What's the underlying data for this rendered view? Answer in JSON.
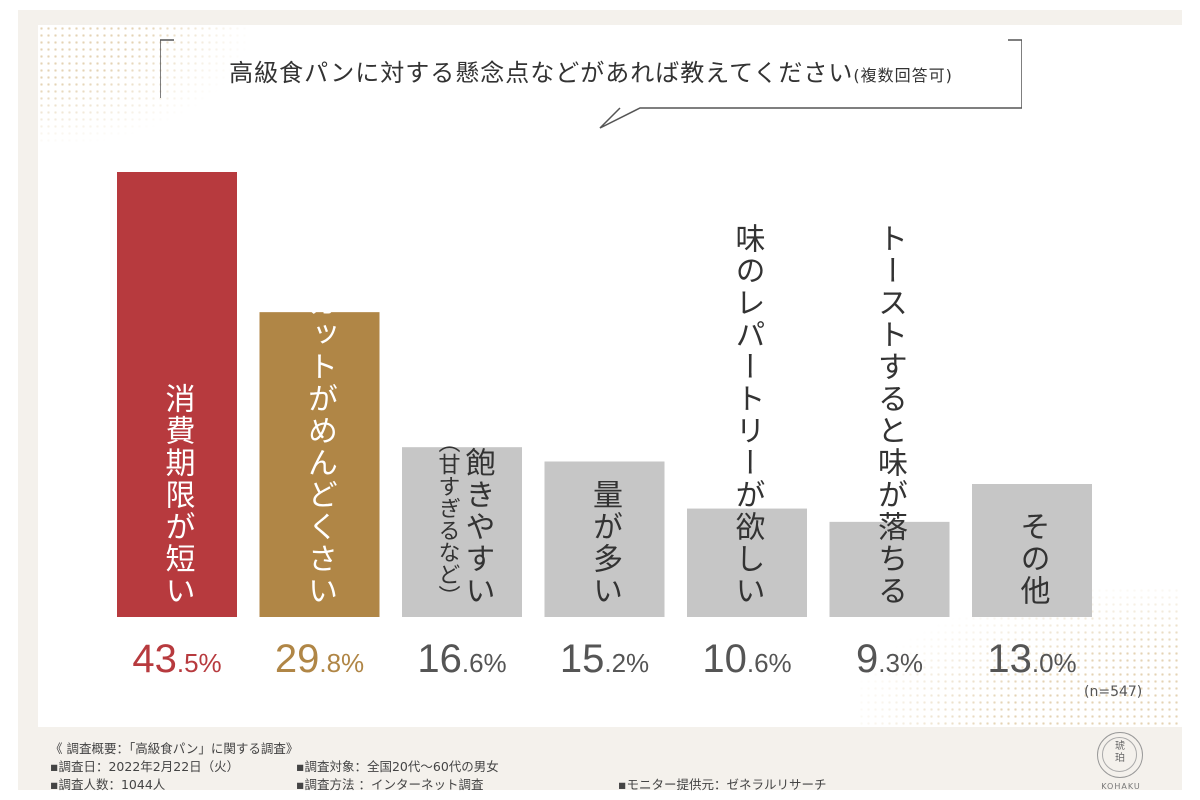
{
  "chart_data": {
    "type": "bar",
    "title": "高級食パンに対する懸念点などがあれば教えてください",
    "title_note": "(複数回答可)",
    "categories": [
      "消費期限が短い",
      "カットがめんどくさい",
      "飽きやすい（甘すぎるなど）",
      "量が多い",
      "味のレパートリーが欲しい",
      "トーストすると味が落ちる",
      "その他"
    ],
    "category_lines": [
      [
        "消費期限が短い"
      ],
      [
        "カットがめんどくさい"
      ],
      [
        "飽きやすい",
        "（甘すぎるなど）"
      ],
      [
        "量が多い"
      ],
      [
        "味のレパートリーが欲しい"
      ],
      [
        "トーストすると味が落ちる"
      ],
      [
        "その他"
      ]
    ],
    "values": [
      43.5,
      29.8,
      16.6,
      15.2,
      10.6,
      9.3,
      13.0
    ],
    "value_labels": [
      {
        "int": "43",
        "dec": ".5%"
      },
      {
        "int": "29",
        "dec": ".8%"
      },
      {
        "int": "16",
        "dec": ".6%"
      },
      {
        "int": "15",
        "dec": ".2%"
      },
      {
        "int": "10",
        "dec": ".6%"
      },
      {
        "int": "9",
        "dec": ".3%"
      },
      {
        "int": "13",
        "dec": ".0%"
      }
    ],
    "colors": [
      "#b73a3e",
      "#b08646",
      "#c6c6c6",
      "#c6c6c6",
      "#c6c6c6",
      "#c6c6c6",
      "#c6c6c6"
    ],
    "label_colors": [
      "#b73a3e",
      "#b08646",
      "#555555",
      "#555555",
      "#555555",
      "#555555",
      "#555555"
    ],
    "category_text_colors": [
      "#ffffff",
      "#ffffff",
      "#333333",
      "#333333",
      "#333333",
      "#333333",
      "#333333"
    ],
    "ylim": [
      0,
      43.5
    ],
    "grid": false,
    "legend": "none",
    "sample_note": "(n=547)"
  },
  "footer": {
    "heading": "《 調査概要：「高級食パン」に関する調査》",
    "date": "▪調査日：2022年2月22日（火）",
    "target": "▪調査対象：全国20代～60代の男女",
    "count": "▪調査人数：1044人",
    "method": "▪調査方法 ：インターネット調査",
    "provider": "▪モニター提供元：ゼネラルリサーチ"
  },
  "logo": {
    "kanji": "琥\n珀",
    "name": "KOHAKU"
  }
}
